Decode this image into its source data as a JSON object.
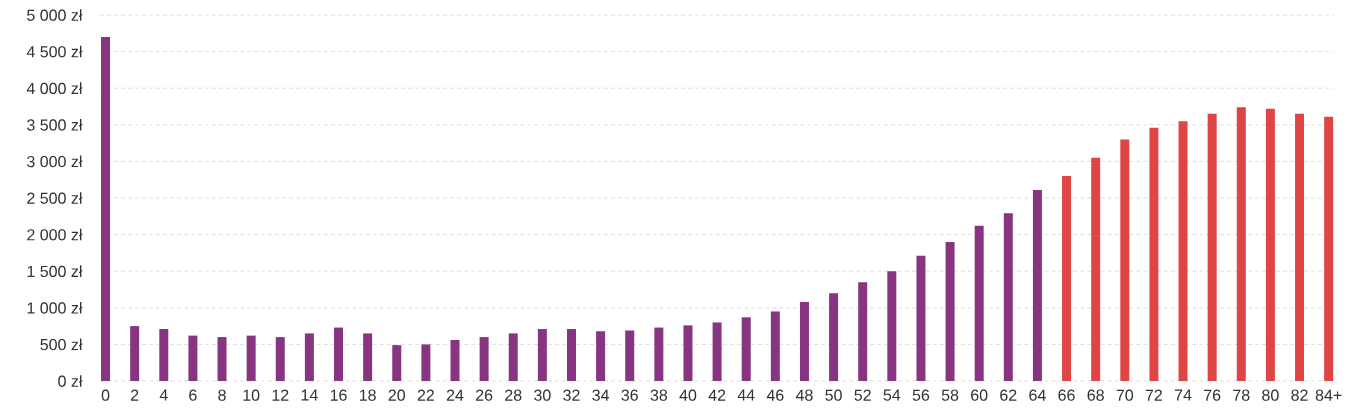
{
  "chart_data": {
    "type": "bar",
    "categories": [
      "0",
      "2",
      "4",
      "6",
      "8",
      "10",
      "12",
      "14",
      "16",
      "18",
      "20",
      "22",
      "24",
      "26",
      "28",
      "30",
      "32",
      "34",
      "36",
      "38",
      "40",
      "42",
      "44",
      "46",
      "48",
      "50",
      "52",
      "54",
      "56",
      "58",
      "60",
      "62",
      "64",
      "66",
      "68",
      "70",
      "72",
      "74",
      "76",
      "78",
      "80",
      "82",
      "84+"
    ],
    "values": [
      4700,
      750,
      710,
      620,
      600,
      620,
      600,
      650,
      730,
      650,
      490,
      500,
      560,
      600,
      650,
      710,
      710,
      680,
      690,
      730,
      760,
      800,
      870,
      950,
      1080,
      1200,
      1350,
      1500,
      1710,
      1900,
      2120,
      2290,
      2610,
      2800,
      3050,
      3300,
      3460,
      3550,
      3650,
      3740,
      3720,
      3650,
      3610
    ],
    "colors": [
      "#873580",
      "#873580",
      "#873580",
      "#873580",
      "#873580",
      "#873580",
      "#873580",
      "#873580",
      "#873580",
      "#873580",
      "#873580",
      "#873580",
      "#873580",
      "#873580",
      "#873580",
      "#873580",
      "#873580",
      "#873580",
      "#873580",
      "#873580",
      "#873580",
      "#873580",
      "#873580",
      "#873580",
      "#873580",
      "#873580",
      "#873580",
      "#873580",
      "#873580",
      "#873580",
      "#873580",
      "#873580",
      "#873580",
      "#e04545",
      "#e04545",
      "#e04545",
      "#e04545",
      "#e04545",
      "#e04545",
      "#e04545",
      "#e04545",
      "#e04545",
      "#e04545"
    ],
    "ylim": [
      0,
      5000
    ],
    "yticks": [
      {
        "value": 0,
        "label": "0 zł"
      },
      {
        "value": 500,
        "label": "500 zł"
      },
      {
        "value": 1000,
        "label": "1 000 zł"
      },
      {
        "value": 1500,
        "label": "1 500 zł"
      },
      {
        "value": 2000,
        "label": "2 000 zł"
      },
      {
        "value": 2500,
        "label": "2 500 zł"
      },
      {
        "value": 3000,
        "label": "3 000 zł"
      },
      {
        "value": 3500,
        "label": "3 500 zł"
      },
      {
        "value": 4000,
        "label": "4 000 zł"
      },
      {
        "value": 4500,
        "label": "4 500 zł"
      },
      {
        "value": 5000,
        "label": "5 000 zł"
      }
    ],
    "grid": "y"
  }
}
